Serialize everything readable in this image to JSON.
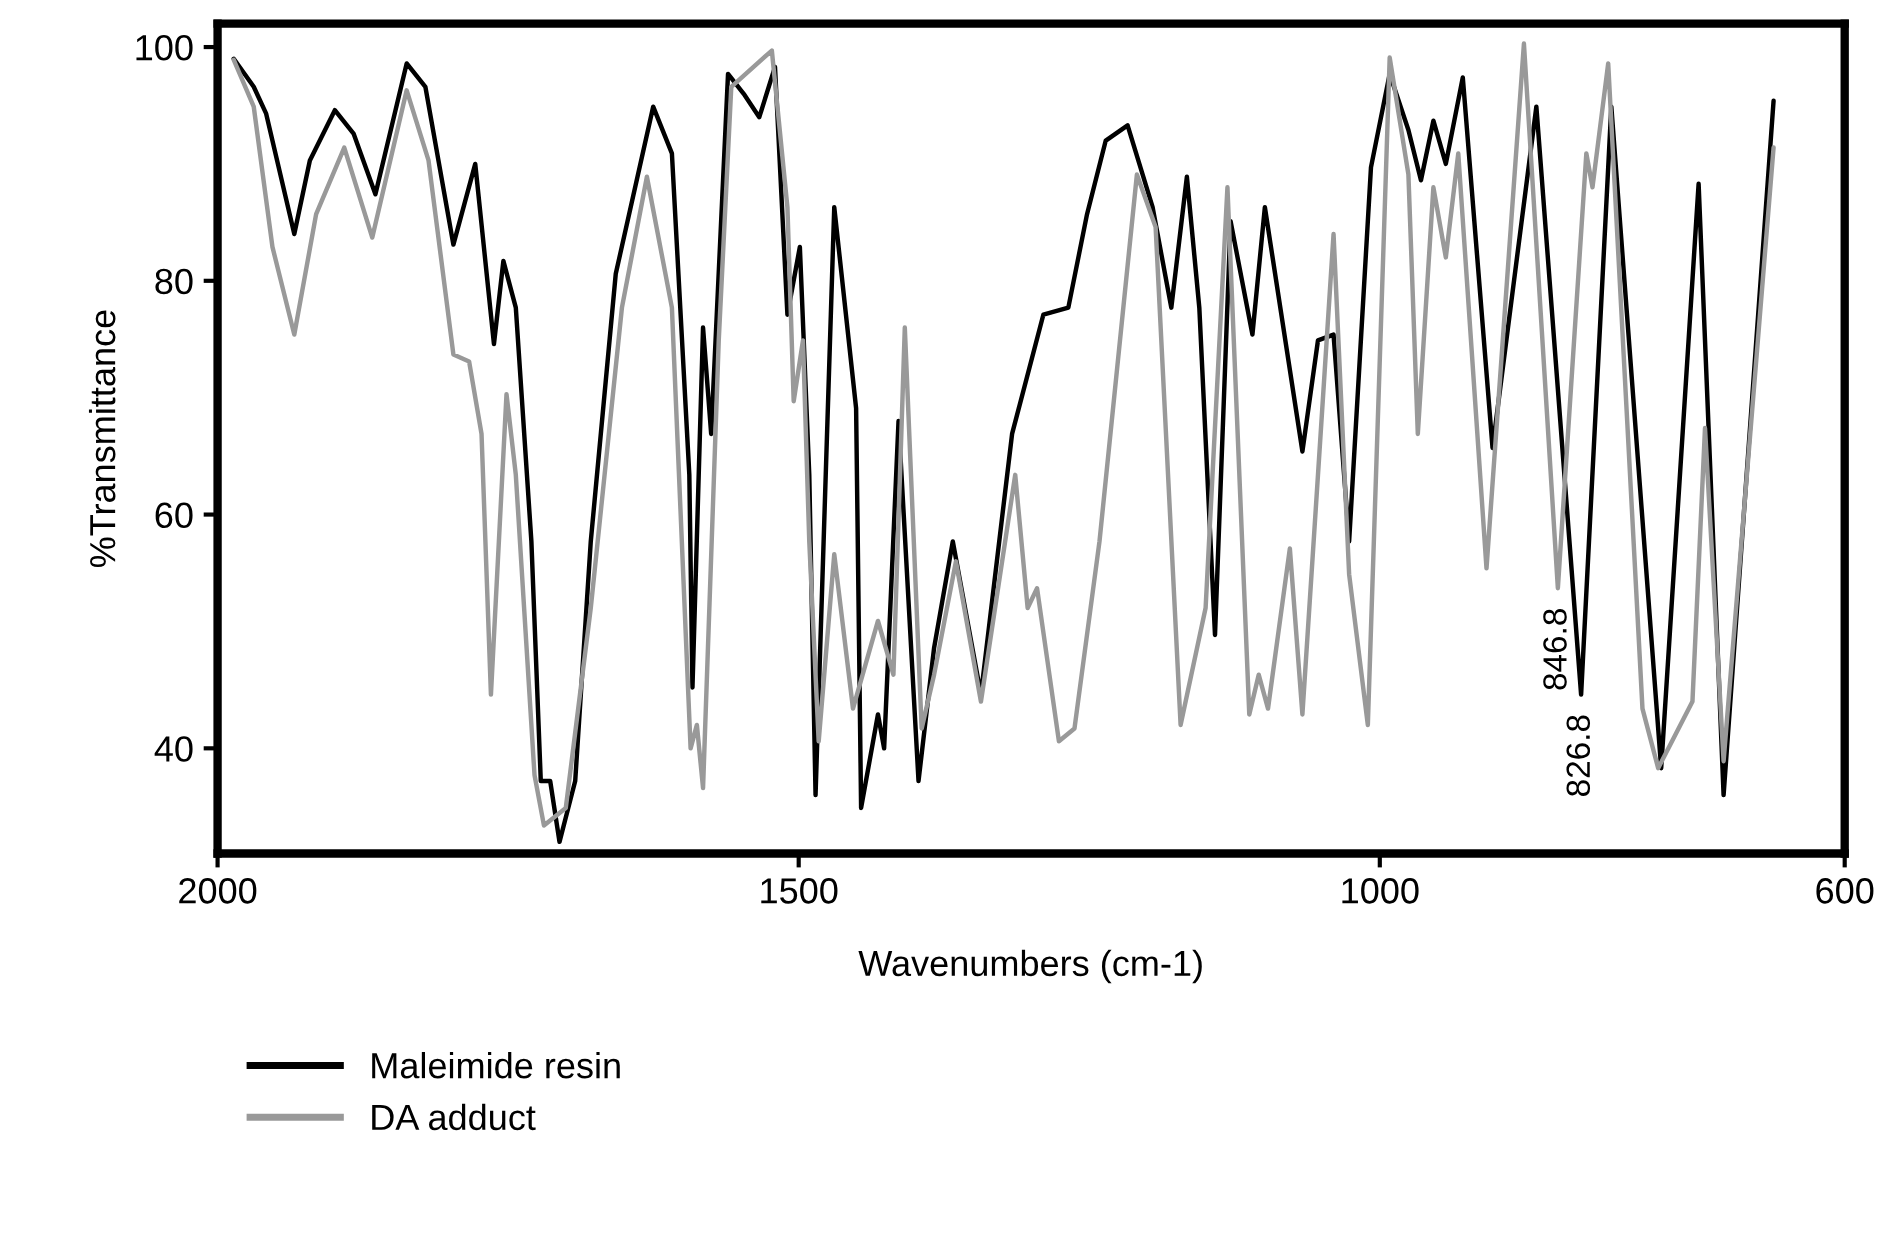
{
  "chart_data": {
    "type": "line",
    "xlabel": "Wavenumbers (cm-1)",
    "ylabel": "%Transmittance",
    "xlim": [
      2000,
      600
    ],
    "xticks": [
      2000,
      1500,
      1000,
      600
    ],
    "ylim": [
      31,
      102
    ],
    "yticks": [
      40,
      60,
      80,
      100
    ],
    "grid": false,
    "legend": "bottom left",
    "marker": "none",
    "line_style": "solid",
    "annotations": [
      {
        "text": "846.8",
        "x": 846.8,
        "y": 53.7
      },
      {
        "text": "826.8",
        "x": 826.8,
        "y": 44.6
      }
    ],
    "series": [
      {
        "name": "Maleimide resin",
        "color": "#000000",
        "x": [
          1986.1,
          1968.9,
          1958.2,
          1934.0,
          1920.6,
          1899.1,
          1883.0,
          1864.2,
          1837.3,
          1821.2,
          1797.1,
          1778.3,
          1762.2,
          1754.1,
          1743.4,
          1730.0,
          1721.9,
          1713.8,
          1705.8,
          1692.3,
          1678.9,
          1657.4,
          1625.2,
          1609.1,
          1594.1,
          1591.4,
          1582.3,
          1575.3,
          1560.8,
          1547.3,
          1533.9,
          1520.4,
          1509.7,
          1499.0,
          1490.9,
          1485.5,
          1469.4,
          1450.6,
          1446.3,
          1431.8,
          1426.5,
          1414.1,
          1396.9,
          1383.5,
          1367.4,
          1343.2,
          1316.4,
          1289.5,
          1268.0,
          1251.9,
          1235.8,
          1217.0,
          1195.5,
          1179.4,
          1166.0,
          1155.3,
          1141.8,
          1128.4,
          1109.6,
          1098.9,
          1066.6,
          1053.2,
          1039.8,
          1026.4,
          1007.6,
          991.5,
          975.4,
          964.6,
          953.9,
          943.2,
          928.6,
          903.0,
          865.3,
          826.8,
          800.8,
          757.9,
          725.7,
          704.2,
          661.2
        ],
        "values": [
          99.0,
          96.6,
          94.3,
          84.0,
          90.3,
          94.6,
          92.6,
          87.4,
          98.6,
          96.6,
          83.1,
          90.0,
          74.6,
          81.7,
          77.7,
          57.7,
          37.2,
          37.2,
          32.0,
          37.2,
          57.7,
          80.6,
          94.9,
          90.9,
          63.4,
          45.2,
          76.0,
          66.9,
          97.7,
          96.0,
          94.0,
          98.3,
          77.1,
          82.9,
          63.4,
          36.0,
          86.3,
          69.1,
          34.9,
          42.9,
          40.0,
          68.0,
          37.2,
          48.6,
          57.7,
          44.6,
          66.9,
          77.1,
          77.7,
          85.7,
          92.0,
          93.3,
          86.3,
          77.7,
          88.9,
          77.7,
          49.7,
          85.1,
          75.4,
          86.3,
          65.4,
          74.9,
          75.4,
          57.7,
          89.7,
          97.7,
          92.9,
          88.6,
          93.7,
          90.0,
          97.4,
          65.7,
          94.9,
          44.6,
          94.9,
          38.3,
          88.3,
          36.0,
          95.4
        ]
      },
      {
        "name": "DA adduct",
        "color": "#999999",
        "x": [
          1986.1,
          1968.9,
          1952.8,
          1934.0,
          1915.2,
          1891.0,
          1866.9,
          1837.3,
          1818.5,
          1797.1,
          1783.6,
          1772.9,
          1764.8,
          1751.4,
          1743.4,
          1727.3,
          1719.2,
          1700.4,
          1678.9,
          1652.1,
          1630.6,
          1609.1,
          1593.0,
          1587.6,
          1582.3,
          1568.8,
          1558.0,
          1523.1,
          1509.7,
          1504.3,
          1496.3,
          1490.9,
          1482.8,
          1469.4,
          1453.3,
          1431.8,
          1418.5,
          1408.7,
          1394.2,
          1383.5,
          1364.7,
          1343.2,
          1313.7,
          1303.0,
          1294.9,
          1276.1,
          1262.7,
          1241.2,
          1209.0,
          1192.9,
          1171.4,
          1149.9,
          1131.1,
          1112.3,
          1104.2,
          1096.2,
          1077.4,
          1066.6,
          1053.2,
          1039.8,
          1026.4,
          1010.3,
          991.5,
          975.4,
          967.3,
          953.9,
          943.2,
          932.5,
          908.2,
          876.0,
          846.8,
          822.3,
          817.0,
          803.5,
          774.0,
          760.5,
          731.0,
          720.2,
          704.2,
          661.2
        ],
        "values": [
          98.9,
          94.9,
          82.9,
          75.4,
          85.7,
          91.4,
          83.7,
          96.3,
          90.3,
          73.7,
          73.1,
          66.9,
          44.6,
          70.3,
          63.4,
          37.7,
          33.4,
          34.9,
          52.0,
          77.7,
          88.9,
          77.7,
          40.0,
          42.0,
          36.6,
          74.9,
          96.6,
          99.7,
          86.3,
          69.7,
          74.9,
          57.7,
          40.6,
          56.6,
          43.4,
          50.9,
          46.3,
          76.0,
          41.7,
          46.3,
          56.0,
          44.0,
          63.4,
          52.0,
          53.7,
          40.6,
          41.7,
          57.7,
          89.1,
          84.6,
          42.0,
          52.0,
          88.0,
          42.9,
          46.3,
          43.4,
          57.1,
          42.9,
          63.4,
          84.0,
          54.9,
          42.0,
          99.1,
          89.1,
          66.9,
          88.0,
          82.0,
          90.9,
          55.4,
          100.3,
          53.7,
          90.9,
          88.0,
          98.6,
          43.4,
          38.3,
          44.0,
          67.4,
          38.9,
          91.4
        ]
      }
    ]
  }
}
